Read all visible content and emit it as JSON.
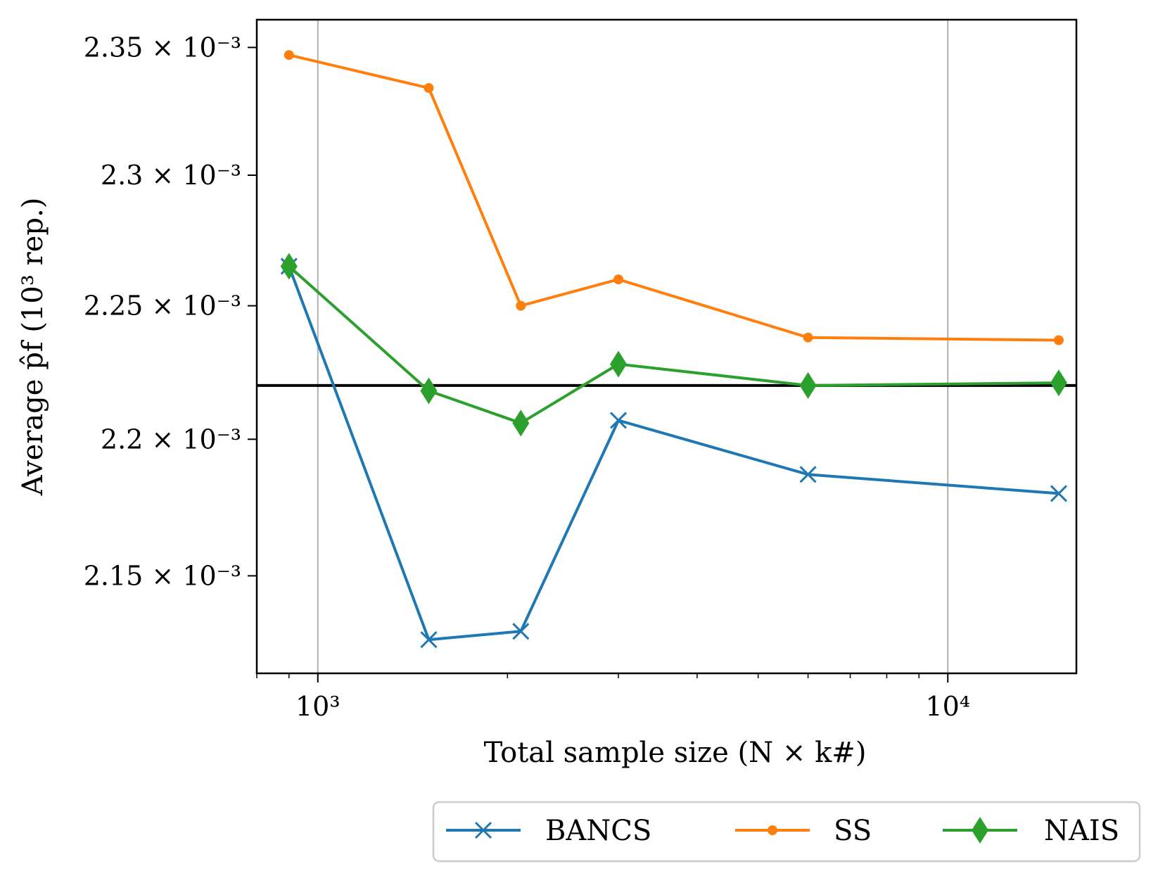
{
  "chart_data": {
    "type": "line",
    "xlabel": "Total sample size (N × k#)",
    "ylabel": "Average p̂f (10³ rep.)",
    "xscale": "log",
    "yscale": "log",
    "xlim": [
      800,
      16000
    ],
    "ylim": [
      0.002115,
      0.002361
    ],
    "x_ticks": [
      {
        "value": 1000,
        "label": "10³"
      },
      {
        "value": 10000,
        "label": "10⁴"
      }
    ],
    "y_ticks": [
      {
        "value": 0.00215,
        "label": "2.15 × 10⁻³"
      },
      {
        "value": 0.0022,
        "label": "2.2 × 10⁻³"
      },
      {
        "value": 0.00225,
        "label": "2.25 × 10⁻³"
      },
      {
        "value": 0.0023,
        "label": "2.3 × 10⁻³"
      },
      {
        "value": 0.00235,
        "label": "2.35 × 10⁻³"
      }
    ],
    "grid": "vertical major only",
    "reference_line": {
      "y": 0.00222,
      "color": "#000000"
    },
    "legend_position": "bottom-right below plot",
    "series": [
      {
        "name": "BANCS",
        "color": "#1f77b4",
        "marker": "x",
        "x": [
          900,
          1500,
          2100,
          3000,
          6000,
          15000
        ],
        "y": [
          0.002265,
          0.002127,
          0.00213,
          0.002207,
          0.002187,
          0.00218
        ]
      },
      {
        "name": "SS",
        "color": "#ff7f0e",
        "marker": "circle",
        "x": [
          900,
          1500,
          2100,
          3000,
          6000,
          15000
        ],
        "y": [
          0.002347,
          0.002334,
          0.00225,
          0.00226,
          0.002238,
          0.002237
        ]
      },
      {
        "name": "NAIS",
        "color": "#2ca02c",
        "marker": "diamond",
        "x": [
          900,
          1500,
          2100,
          3000,
          6000,
          15000
        ],
        "y": [
          0.002265,
          0.002218,
          0.002206,
          0.002228,
          0.00222,
          0.002221
        ]
      }
    ]
  }
}
